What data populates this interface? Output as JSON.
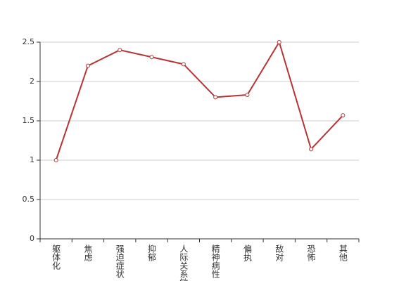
{
  "chart_data": {
    "type": "line",
    "categories": [
      "躯体化",
      "焦虑",
      "强迫症状",
      "抑郁",
      "人际关系敏感",
      "精神病性",
      "偏执",
      "敌对",
      "恐怖",
      "其他"
    ],
    "series": [
      {
        "color": "#b83434",
        "values": [
          1.0,
          2.2,
          2.4,
          2.31,
          2.22,
          1.8,
          1.83,
          2.5,
          1.14,
          1.57
        ]
      }
    ],
    "ylim": [
      0,
      2.5
    ],
    "yticks": [
      0,
      0.5,
      1,
      1.5,
      2,
      2.5
    ],
    "grid": true
  }
}
